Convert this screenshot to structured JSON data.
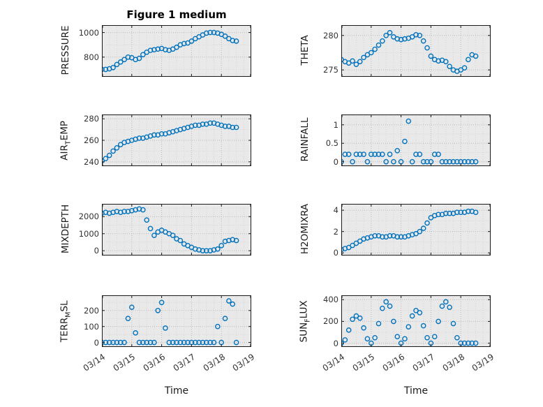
{
  "title": "Figure 1 medium",
  "xlabel": "Time",
  "xtick_labels": [
    "03/14",
    "03/15",
    "03/16",
    "03/17",
    "03/18",
    "03/19"
  ],
  "marker_color": "#0072BD",
  "plot_bg": "#e9e9e9",
  "x_days": [
    14,
    14.125,
    14.25,
    14.375,
    14.5,
    14.625,
    14.75,
    14.875,
    15,
    15.125,
    15.25,
    15.375,
    15.5,
    15.625,
    15.75,
    15.875,
    16,
    16.125,
    16.25,
    16.375,
    16.5,
    16.625,
    16.75,
    16.875,
    17,
    17.125,
    17.25,
    17.375,
    17.5,
    17.625,
    17.75,
    17.875,
    18,
    18.125,
    18.25,
    18.375,
    18.5
  ],
  "chart_data": [
    {
      "type": "scatter",
      "name": "pressure",
      "label": "PRESSURE",
      "ylabel_parts": [
        {
          "t": "PRESSURE"
        }
      ],
      "position": {
        "row": 0,
        "col": 0
      },
      "xlim": [
        14,
        19
      ],
      "ylim": [
        640,
        1060
      ],
      "yticks": [
        800,
        1000
      ],
      "ytick_labels": [
        "800",
        "1000"
      ],
      "y": [
        700,
        700,
        705,
        715,
        740,
        760,
        780,
        800,
        795,
        780,
        790,
        820,
        840,
        855,
        860,
        865,
        870,
        860,
        855,
        865,
        880,
        900,
        910,
        915,
        930,
        950,
        965,
        980,
        995,
        1000,
        1000,
        995,
        985,
        970,
        950,
        935,
        930
      ]
    },
    {
      "type": "scatter",
      "name": "theta",
      "label": "THETA",
      "ylabel_parts": [
        {
          "t": "THETA"
        }
      ],
      "position": {
        "row": 0,
        "col": 1
      },
      "xlim": [
        14,
        19
      ],
      "ylim": [
        274,
        281.5
      ],
      "yticks": [
        275,
        280
      ],
      "ytick_labels": [
        "275",
        "280"
      ],
      "y": [
        276.5,
        276.2,
        276,
        276.3,
        275.8,
        276.2,
        276.8,
        277.2,
        277.5,
        278,
        278.6,
        279.2,
        280,
        280.4,
        279.8,
        279.5,
        279.4,
        279.5,
        279.6,
        279.8,
        280.1,
        280,
        279.2,
        278.2,
        277,
        276.5,
        276.3,
        276.4,
        276.2,
        275.5,
        275,
        274.8,
        275,
        275.3,
        276.5,
        277.2,
        277
      ]
    },
    {
      "type": "scatter",
      "name": "airtemp",
      "label": "AIR_TEMP",
      "ylabel_parts": [
        {
          "t": "AIR"
        },
        {
          "t": "T",
          "sub": true
        },
        {
          "t": "EMP"
        }
      ],
      "position": {
        "row": 1,
        "col": 0
      },
      "xlim": [
        14,
        19
      ],
      "ylim": [
        236,
        284
      ],
      "yticks": [
        240,
        260,
        280
      ],
      "ytick_labels": [
        "240",
        "260",
        "280"
      ],
      "y": [
        241,
        243,
        246,
        250,
        253,
        256,
        258,
        259,
        260,
        261,
        262,
        262,
        263,
        264,
        265,
        265,
        266,
        266,
        267,
        268,
        269,
        270,
        271,
        272,
        273,
        274,
        274,
        275,
        275,
        276,
        276,
        275,
        274,
        273,
        273,
        272,
        272
      ]
    },
    {
      "type": "scatter",
      "name": "rainfall",
      "label": "RAINFALL",
      "ylabel_parts": [
        {
          "t": "RAINFALL"
        }
      ],
      "position": {
        "row": 1,
        "col": 1
      },
      "xlim": [
        14,
        19
      ],
      "ylim": [
        -0.12,
        1.28
      ],
      "yticks": [
        0,
        0.5,
        1
      ],
      "ytick_labels": [
        "0",
        "0.5",
        "1"
      ],
      "y": [
        0,
        0.2,
        0.2,
        0,
        0.2,
        0.2,
        0.2,
        0,
        0.2,
        0.2,
        0.2,
        0.2,
        0,
        0.2,
        0,
        0.3,
        0,
        0.55,
        1.1,
        0,
        0.2,
        0.2,
        0,
        0,
        0,
        0.2,
        0.2,
        0,
        0,
        0,
        0,
        0,
        0,
        0,
        0,
        0,
        0
      ]
    },
    {
      "type": "scatter",
      "name": "mixdepth",
      "label": "MIXDEPTH",
      "ylabel_parts": [
        {
          "t": "MIXDEPTH"
        }
      ],
      "position": {
        "row": 2,
        "col": 0
      },
      "xlim": [
        14,
        19
      ],
      "ylim": [
        -280,
        2750
      ],
      "yticks": [
        0,
        1000,
        2000
      ],
      "ytick_labels": [
        "0",
        "1000",
        "2000"
      ],
      "y": [
        2200,
        2250,
        2200,
        2250,
        2300,
        2250,
        2300,
        2300,
        2350,
        2400,
        2450,
        2400,
        1800,
        1300,
        900,
        1100,
        1200,
        1100,
        1000,
        900,
        700,
        600,
        400,
        300,
        200,
        100,
        50,
        0,
        0,
        0,
        50,
        100,
        300,
        550,
        600,
        650,
        600
      ]
    },
    {
      "type": "scatter",
      "name": "h2omixra",
      "label": "H2OMIXRA",
      "ylabel_parts": [
        {
          "t": "H2OMIXRA"
        }
      ],
      "position": {
        "row": 2,
        "col": 1
      },
      "xlim": [
        14,
        19
      ],
      "ylim": [
        -0.25,
        4.6
      ],
      "yticks": [
        0,
        2,
        4
      ],
      "ytick_labels": [
        "0",
        "2",
        "4"
      ],
      "y": [
        0.3,
        0.4,
        0.5,
        0.7,
        0.9,
        1.1,
        1.3,
        1.4,
        1.5,
        1.6,
        1.6,
        1.5,
        1.5,
        1.6,
        1.6,
        1.5,
        1.5,
        1.5,
        1.6,
        1.7,
        1.8,
        2,
        2.3,
        2.8,
        3.3,
        3.5,
        3.6,
        3.6,
        3.7,
        3.7,
        3.7,
        3.8,
        3.8,
        3.8,
        3.9,
        3.9,
        3.8
      ]
    },
    {
      "type": "scatter",
      "name": "terrmsl",
      "label": "TERR_MSL",
      "ylabel_parts": [
        {
          "t": "TERR"
        },
        {
          "t": "M",
          "sub": true
        },
        {
          "t": "SL"
        }
      ],
      "position": {
        "row": 3,
        "col": 0
      },
      "xlim": [
        14,
        19
      ],
      "ylim": [
        -28,
        295
      ],
      "yticks": [
        0,
        100,
        200
      ],
      "ytick_labels": [
        "0",
        "100",
        "200"
      ],
      "y": [
        0,
        0,
        0,
        0,
        0,
        0,
        0,
        150,
        220,
        60,
        0,
        0,
        0,
        0,
        0,
        200,
        250,
        90,
        0,
        0,
        0,
        0,
        0,
        0,
        0,
        0,
        0,
        0,
        0,
        0,
        0,
        100,
        0,
        150,
        260,
        240,
        0
      ]
    },
    {
      "type": "scatter",
      "name": "sunflux",
      "label": "SUN_FLUX",
      "ylabel_parts": [
        {
          "t": "SUN"
        },
        {
          "t": "F",
          "sub": true
        },
        {
          "t": "LUX"
        }
      ],
      "position": {
        "row": 3,
        "col": 1
      },
      "xlim": [
        14,
        19
      ],
      "ylim": [
        -35,
        440
      ],
      "yticks": [
        0,
        200,
        400
      ],
      "ytick_labels": [
        "0",
        "200",
        "400"
      ],
      "y": [
        0,
        30,
        120,
        220,
        250,
        230,
        140,
        40,
        0,
        50,
        180,
        320,
        380,
        340,
        200,
        60,
        0,
        40,
        150,
        250,
        300,
        280,
        160,
        50,
        0,
        60,
        200,
        340,
        380,
        330,
        180,
        50,
        0,
        0,
        0,
        0,
        0
      ]
    }
  ]
}
